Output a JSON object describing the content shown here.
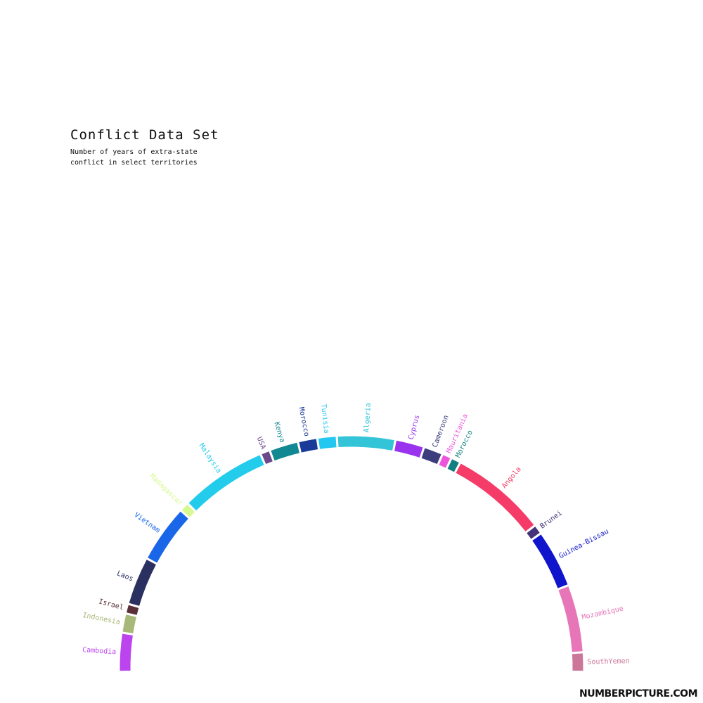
{
  "title": "Conflict Data Set",
  "subtitle": "Number of years of extra-state conflict  in select territories",
  "watermark": "NUMBERPICTURE.COM",
  "chart_data": {
    "type": "radial-bar",
    "title": "Conflict Data Set",
    "subtitle": "Number of years of extra-state conflict  in select territories",
    "categories": [
      "Cambodia",
      "Indonesia",
      "Israel",
      "Laos",
      "Vietnam",
      "Madagascar",
      "Malaysia",
      "USA",
      "Kenya",
      "Morocco",
      "Tunisia",
      "Algeria",
      "Cyprus",
      "Cameroon",
      "Mauritania",
      "Morocco",
      "Angola",
      "Brunei",
      "Guinea-Bissau",
      "Mozambique",
      "SouthYemen"
    ],
    "values": [
      4,
      2,
      1,
      5,
      6,
      1,
      9,
      1,
      3,
      2,
      2,
      6,
      3,
      2,
      1,
      1,
      10,
      1,
      6,
      7,
      2
    ],
    "colors": [
      "#bb44ee",
      "#a8b878",
      "#5a3038",
      "#2a3060",
      "#1a66e8",
      "#d8f890",
      "#22ccea",
      "#6a4a8a",
      "#128892",
      "#1a3a9a",
      "#22c8f0",
      "#33c4d8",
      "#9933ee",
      "#3d3d7d",
      "#ee55dd",
      "#128080",
      "#f53c68",
      "#44337a",
      "#1015cc",
      "#e676b8",
      "#cc7799"
    ]
  }
}
